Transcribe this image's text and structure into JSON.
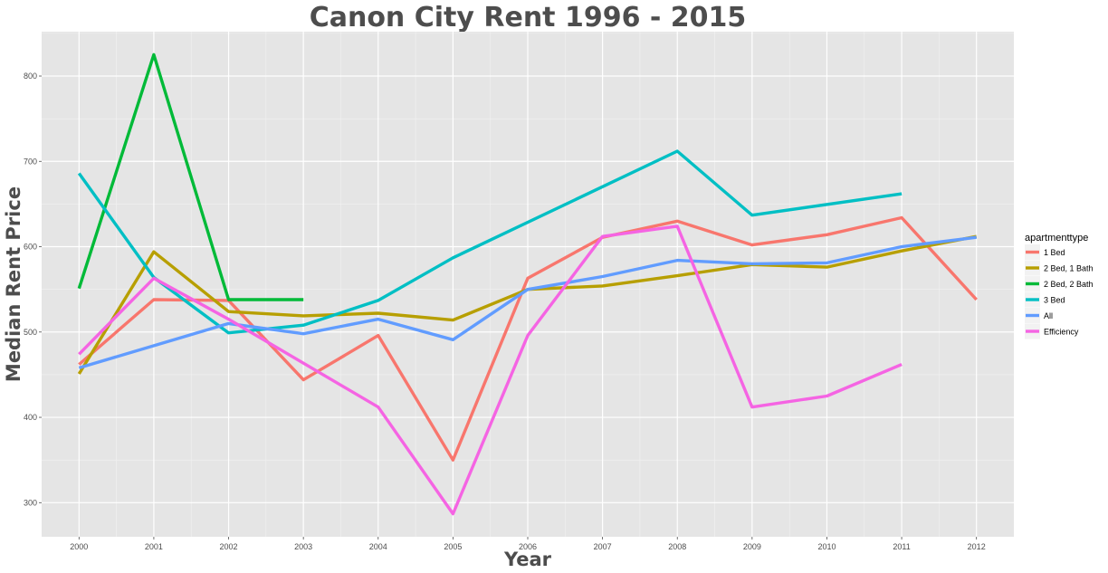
{
  "chart_data": {
    "type": "line",
    "title": "Canon City Rent 1996 - 2015",
    "xlabel": "Year",
    "ylabel": "Median Rent Price",
    "x": [
      2000,
      2001,
      2002,
      2003,
      2004,
      2005,
      2006,
      2007,
      2008,
      2009,
      2010,
      2011,
      2012
    ],
    "xlim": [
      1999.5,
      2012.5
    ],
    "ylim": [
      260,
      852
    ],
    "y_ticks": [
      300,
      400,
      500,
      600,
      700,
      800
    ],
    "grid": true,
    "legend_title": "apartmenttype",
    "legend_position": "right",
    "series": [
      {
        "name": "1 Bed",
        "color": "#F8766D",
        "values": [
          462,
          538,
          537,
          444,
          496,
          350,
          563,
          611,
          630,
          602,
          614,
          634,
          538
        ]
      },
      {
        "name": "2 Bed, 1 Bath",
        "color": "#B79F00",
        "values": [
          451,
          594,
          524,
          519,
          522,
          514,
          550,
          554,
          566,
          579,
          576,
          595,
          612
        ]
      },
      {
        "name": "2 Bed, 2 Bath",
        "color": "#00BA38",
        "values": [
          551,
          825,
          538,
          538,
          null,
          null,
          null,
          null,
          null,
          null,
          null,
          null,
          null
        ]
      },
      {
        "name": "3 Bed",
        "color": "#00BFC4",
        "values": [
          686,
          564,
          499,
          508,
          537,
          587,
          null,
          null,
          712,
          637,
          null,
          662,
          null
        ]
      },
      {
        "name": "All",
        "color": "#619CFF",
        "values": [
          458,
          null,
          510,
          498,
          515,
          491,
          550,
          565,
          584,
          580,
          581,
          600,
          611
        ]
      },
      {
        "name": "Efficiency",
        "color": "#F564E3",
        "values": [
          474,
          563,
          515,
          null,
          412,
          287,
          496,
          612,
          624,
          412,
          425,
          462,
          null
        ]
      }
    ]
  }
}
